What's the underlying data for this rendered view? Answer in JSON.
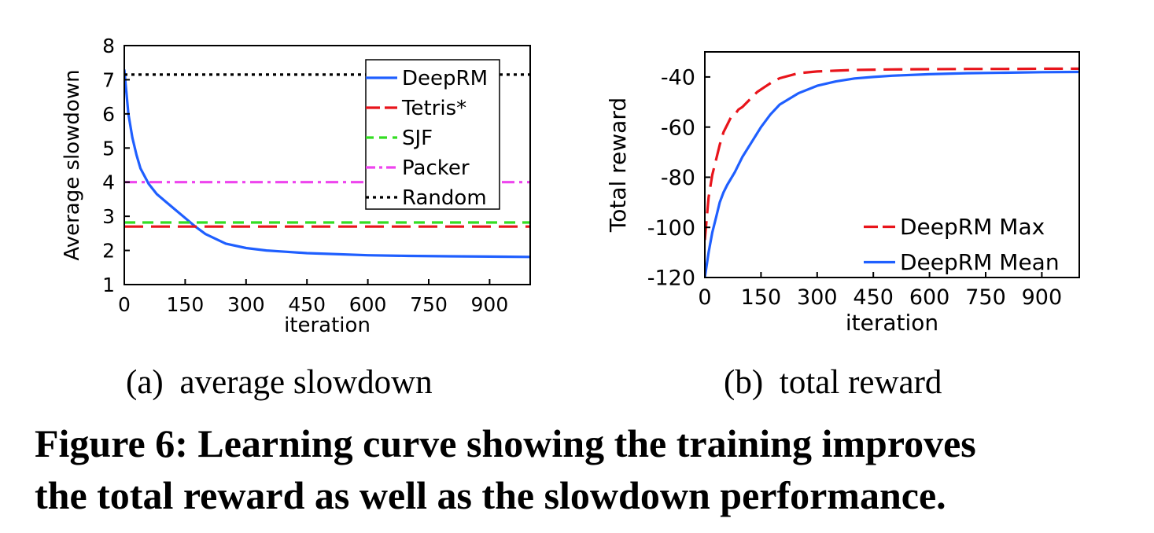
{
  "colors": {
    "deeprm": "#1f5fff",
    "tetris": "#e8141b",
    "sjf": "#33dd22",
    "packer": "#ee44ee",
    "random": "#000000"
  },
  "chart_data": [
    {
      "type": "line",
      "xlabel": "iteration",
      "ylabel": "Average slowdown",
      "xlim": [
        0,
        1000
      ],
      "ylim": [
        1,
        8
      ],
      "xticks": [
        0,
        150,
        300,
        450,
        600,
        750,
        900
      ],
      "yticks": [
        1,
        2,
        3,
        4,
        5,
        6,
        7,
        8
      ],
      "legend": "top-right",
      "grid": false,
      "series": [
        {
          "name": "DeepRM",
          "style": "solid",
          "colorKey": "deeprm",
          "x": [
            0,
            10,
            20,
            30,
            40,
            60,
            80,
            100,
            125,
            150,
            175,
            200,
            250,
            300,
            350,
            400,
            450,
            500,
            600,
            700,
            800,
            900,
            1000
          ],
          "y": [
            7.3,
            6.0,
            5.3,
            4.8,
            4.4,
            3.95,
            3.65,
            3.45,
            3.2,
            2.95,
            2.7,
            2.48,
            2.2,
            2.07,
            2.0,
            1.96,
            1.92,
            1.9,
            1.86,
            1.84,
            1.83,
            1.82,
            1.81
          ]
        },
        {
          "name": "Tetris*",
          "style": "long-dash",
          "colorKey": "tetris",
          "x": [
            0,
            1000
          ],
          "y": [
            2.7,
            2.7
          ]
        },
        {
          "name": "SJF",
          "style": "dash",
          "colorKey": "sjf",
          "x": [
            0,
            1000
          ],
          "y": [
            2.82,
            2.82
          ]
        },
        {
          "name": "Packer",
          "style": "dash-dot",
          "colorKey": "packer",
          "x": [
            0,
            1000
          ],
          "y": [
            4.0,
            4.0
          ]
        },
        {
          "name": "Random",
          "style": "dot",
          "colorKey": "random",
          "x": [
            0,
            1000
          ],
          "y": [
            7.15,
            7.15
          ]
        }
      ]
    },
    {
      "type": "line",
      "xlabel": "iteration",
      "ylabel": "Total reward",
      "xlim": [
        0,
        1000
      ],
      "ylim": [
        -120,
        -30
      ],
      "xticks": [
        0,
        150,
        300,
        450,
        600,
        750,
        900
      ],
      "yticks": [
        -40,
        -60,
        -80,
        -100,
        -120
      ],
      "legend": "bottom-right",
      "grid": false,
      "series": [
        {
          "name": "DeepRM Max",
          "style": "long-dash",
          "colorKey": "tetris",
          "x": [
            0,
            10,
            20,
            30,
            40,
            50,
            60,
            70,
            80,
            90,
            100,
            120,
            140,
            160,
            180,
            200,
            250,
            300,
            350,
            400,
            500,
            600,
            700,
            800,
            900,
            1000
          ],
          "y": [
            -105,
            -88,
            -79,
            -73,
            -67,
            -62,
            -59,
            -56,
            -55,
            -53,
            -52,
            -49,
            -46,
            -44,
            -42,
            -40.5,
            -38.5,
            -37.8,
            -37.5,
            -37.2,
            -37,
            -36.9,
            -36.8,
            -36.8,
            -36.7,
            -36.7
          ]
        },
        {
          "name": "DeepRM Mean",
          "style": "solid",
          "colorKey": "deeprm",
          "x": [
            0,
            10,
            20,
            30,
            40,
            50,
            60,
            80,
            100,
            125,
            150,
            175,
            200,
            250,
            300,
            350,
            400,
            450,
            500,
            600,
            700,
            800,
            900,
            1000
          ],
          "y": [
            -120,
            -110,
            -102,
            -96,
            -90,
            -86,
            -83,
            -78,
            -72,
            -66,
            -60,
            -55,
            -51,
            -46.5,
            -43.5,
            -41.8,
            -40.6,
            -40,
            -39.5,
            -38.9,
            -38.5,
            -38.3,
            -38.1,
            -38.0
          ]
        }
      ]
    }
  ],
  "captions": {
    "sub_a_label": "(a)",
    "sub_a_text": "average slowdown",
    "sub_b_label": "(b)",
    "sub_b_text": "total reward",
    "figure_line1": "Figure 6: Learning curve showing the training improves",
    "figure_line2": "the total reward as well as the slowdown performance."
  }
}
